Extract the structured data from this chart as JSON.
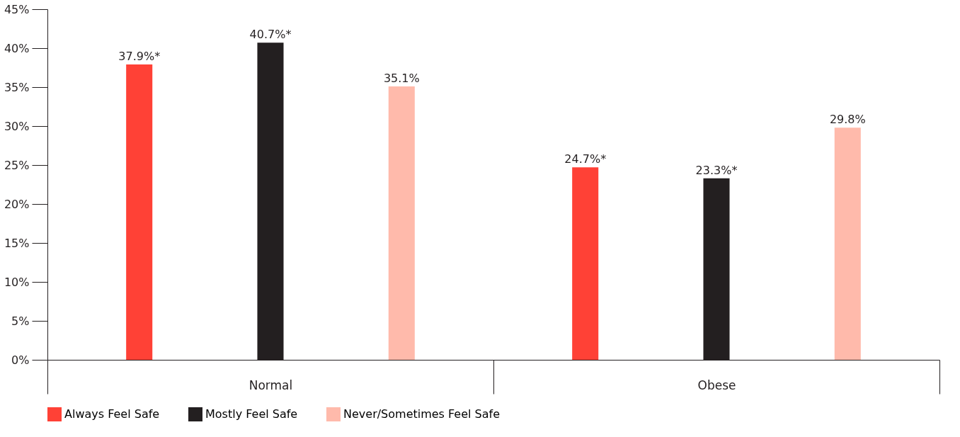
{
  "chart_data": {
    "type": "bar",
    "categories": [
      "Normal",
      "Obese"
    ],
    "series": [
      {
        "name": "Always Feel Safe",
        "color": "#ff4136",
        "values": [
          37.9,
          24.7
        ],
        "value_labels": [
          "37.9%*",
          "24.7%*"
        ]
      },
      {
        "name": "Mostly Feel Safe",
        "color": "#231f20",
        "values": [
          40.7,
          23.3
        ],
        "value_labels": [
          "40.7%*",
          "23.3%*"
        ]
      },
      {
        "name": "Never/Sometimes Feel Safe",
        "color": "#ffbaab",
        "values": [
          35.1,
          29.8
        ],
        "value_labels": [
          "35.1%",
          "29.8%"
        ]
      }
    ],
    "ylim": [
      0,
      45
    ],
    "yticks": [
      {
        "value": 0,
        "label": "0%"
      },
      {
        "value": 5,
        "label": "5%"
      },
      {
        "value": 10,
        "label": "10%"
      },
      {
        "value": 15,
        "label": "15%"
      },
      {
        "value": 20,
        "label": "20%"
      },
      {
        "value": 25,
        "label": "25%"
      },
      {
        "value": 30,
        "label": "30%"
      },
      {
        "value": 35,
        "label": "35%"
      },
      {
        "value": 40,
        "label": "40%"
      },
      {
        "value": 45,
        "label": "45%"
      }
    ],
    "grid": false,
    "legend": "bottom"
  }
}
